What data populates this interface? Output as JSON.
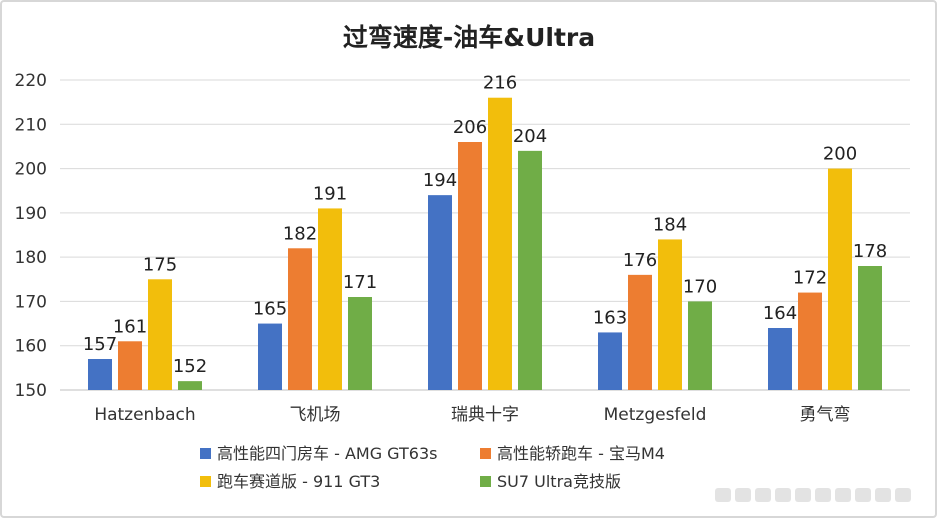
{
  "chart_data": {
    "type": "bar",
    "title": "过弯速度-油车&Ultra",
    "categories": [
      "Hatzenbach",
      "飞机场",
      "瑞典十字",
      "Metzgesfeld",
      "勇气弯"
    ],
    "ylim": [
      150,
      220
    ],
    "yticks": [
      150,
      160,
      170,
      180,
      190,
      200,
      210,
      220
    ],
    "ytick_labels": [
      "150",
      "160",
      "170",
      "180",
      "190",
      "200",
      "210",
      "220"
    ],
    "grid": true,
    "legend_position": "bottom",
    "series": [
      {
        "name": "高性能四门房车 - AMG GT63s",
        "color": "#4472C4",
        "values": [
          157,
          165,
          194,
          163,
          164
        ]
      },
      {
        "name": "高性能轿跑车 - 宝马M4",
        "color": "#ED7D31",
        "values": [
          161,
          182,
          206,
          176,
          172
        ]
      },
      {
        "name": "跑车赛道版 - 911 GT3",
        "color": "#F2BE0C",
        "values": [
          175,
          191,
          216,
          184,
          200
        ]
      },
      {
        "name": "SU7 Ultra竞技版",
        "color": "#70AD47",
        "values": [
          152,
          171,
          204,
          170,
          178
        ]
      }
    ]
  }
}
